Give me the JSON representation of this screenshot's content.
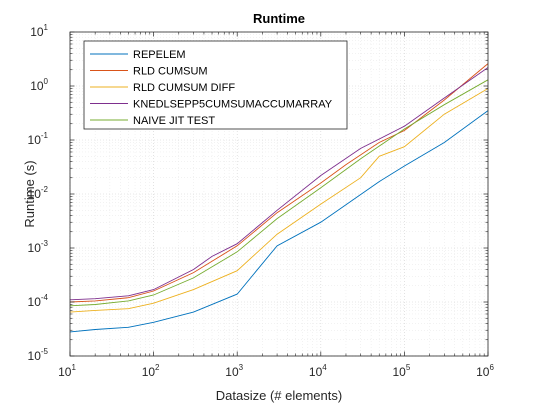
{
  "chart_data": {
    "type": "line",
    "title": "Runtime",
    "xlabel": "Datasize (# elements)",
    "ylabel": "Runtime (s)",
    "x_scale": "log",
    "y_scale": "log",
    "xlim": [
      10,
      1000000
    ],
    "ylim": [
      1e-05,
      10
    ],
    "grid": true,
    "minor_grid": true,
    "legend_position": "top-left",
    "x_ticks": [
      {
        "base": "10",
        "exp": "1",
        "value": 10
      },
      {
        "base": "10",
        "exp": "2",
        "value": 100
      },
      {
        "base": "10",
        "exp": "3",
        "value": 1000
      },
      {
        "base": "10",
        "exp": "4",
        "value": 10000
      },
      {
        "base": "10",
        "exp": "5",
        "value": 100000
      },
      {
        "base": "10",
        "exp": "6",
        "value": 1000000
      }
    ],
    "y_ticks": [
      {
        "base": "10",
        "exp": "-5",
        "value": 1e-05
      },
      {
        "base": "10",
        "exp": "-4",
        "value": 0.0001
      },
      {
        "base": "10",
        "exp": "-3",
        "value": 0.001
      },
      {
        "base": "10",
        "exp": "-2",
        "value": 0.01
      },
      {
        "base": "10",
        "exp": "-1",
        "value": 0.1
      },
      {
        "base": "10",
        "exp": "0",
        "value": 1
      },
      {
        "base": "10",
        "exp": "1",
        "value": 10
      }
    ],
    "series": [
      {
        "name": "REPELEM",
        "color": "#0072bd",
        "x": [
          10,
          20,
          50,
          100,
          300,
          1000,
          3000,
          10000,
          50000,
          100000,
          300000,
          1000000
        ],
        "y": [
          2.8e-05,
          3.1e-05,
          3.4e-05,
          4.2e-05,
          6.5e-05,
          0.00014,
          0.0011,
          0.003,
          0.017,
          0.033,
          0.09,
          0.35
        ]
      },
      {
        "name": "RLD CUMSUM",
        "color": "#d95319",
        "x": [
          10,
          20,
          50,
          100,
          300,
          1000,
          3000,
          10000,
          20000,
          50000,
          100000,
          300000,
          1000000
        ],
        "y": [
          0.0001,
          0.000105,
          0.00012,
          0.00016,
          0.00035,
          0.0011,
          0.0045,
          0.016,
          0.035,
          0.09,
          0.15,
          0.55,
          2.6
        ]
      },
      {
        "name": "RLD CUMSUM DIFF",
        "color": "#edb120",
        "x": [
          10,
          20,
          50,
          100,
          300,
          1000,
          3000,
          10000,
          30000,
          50000,
          100000,
          300000,
          1000000
        ],
        "y": [
          6.5e-05,
          7e-05,
          7.5e-05,
          9.5e-05,
          0.00017,
          0.00038,
          0.0018,
          0.0065,
          0.02,
          0.05,
          0.075,
          0.3,
          0.9
        ]
      },
      {
        "name": "KNEDLSEPP5CUMSUMACCUMARRAY",
        "color": "#7e2f8e",
        "x": [
          10,
          20,
          50,
          100,
          300,
          500,
          1000,
          3000,
          10000,
          30000,
          100000,
          300000,
          1000000
        ],
        "y": [
          0.00011,
          0.000115,
          0.00013,
          0.00017,
          0.0004,
          0.0007,
          0.0012,
          0.005,
          0.022,
          0.07,
          0.18,
          0.6,
          2.2
        ]
      },
      {
        "name": "NAIVE JIT TEST",
        "color": "#77ac30",
        "x": [
          10,
          20,
          50,
          100,
          300,
          1000,
          3000,
          10000,
          30000,
          100000,
          300000,
          1000000
        ],
        "y": [
          8.5e-05,
          9e-05,
          0.000105,
          0.000135,
          0.00028,
          0.00085,
          0.0035,
          0.013,
          0.045,
          0.16,
          0.45,
          1.3
        ]
      }
    ]
  }
}
